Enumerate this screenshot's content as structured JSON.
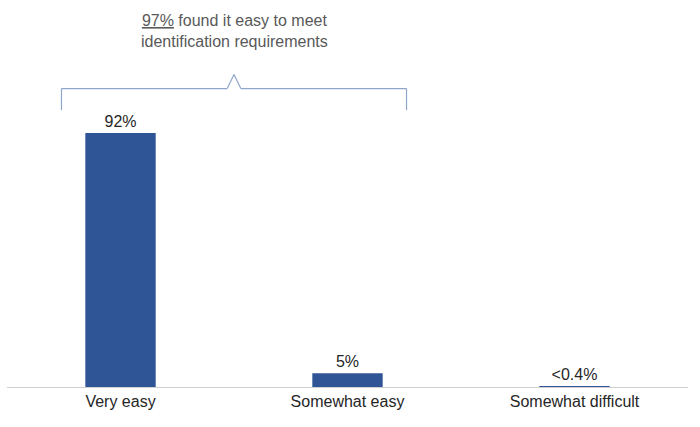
{
  "chart_data": {
    "type": "bar",
    "categories": [
      "Very easy",
      "Somewhat easy",
      "Somewhat difficult"
    ],
    "values": [
      92,
      5,
      0.4
    ],
    "value_labels": [
      "92%",
      "5%",
      "<0.4%"
    ],
    "data_labels": true,
    "color": "#2f5597",
    "ylim": [
      0,
      92
    ],
    "tick_labels": "x",
    "grid": false,
    "annotation": {
      "text": [
        "97% found it easy to meet",
        "identification requirements"
      ],
      "spans": [
        "Very easy",
        "Somewhat easy"
      ]
    }
  }
}
